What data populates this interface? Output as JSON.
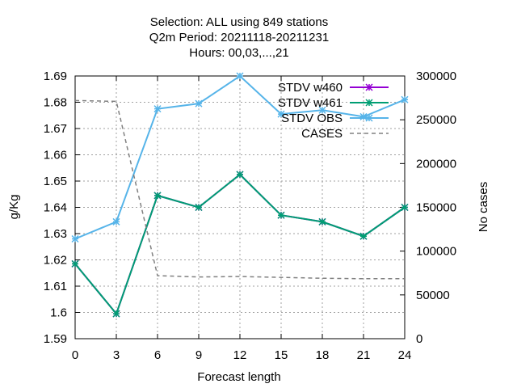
{
  "chart_data": {
    "type": "line",
    "title_lines": [
      "Selection: ALL using   849 stations",
      "Q2m   Period: 20211118-20211231",
      "Hours:  00,03,...,21"
    ],
    "xlabel": "Forecast length",
    "ylabel": "g/Kg",
    "y2label": "No cases",
    "x": [
      0,
      3,
      6,
      9,
      12,
      15,
      18,
      21,
      24
    ],
    "xlim": [
      0,
      24
    ],
    "ylim": [
      1.59,
      1.69
    ],
    "y2lim": [
      0,
      300000
    ],
    "yticks": [
      "1.59",
      "1.6",
      "1.61",
      "1.62",
      "1.63",
      "1.64",
      "1.65",
      "1.66",
      "1.67",
      "1.68",
      "1.69"
    ],
    "y2ticks": [
      "0",
      "50000",
      "100000",
      "150000",
      "200000",
      "250000",
      "300000"
    ],
    "xticks": [
      "0",
      "3",
      "6",
      "9",
      "12",
      "15",
      "18",
      "21",
      "24"
    ],
    "grid": true,
    "legend_position": "top-right",
    "series": [
      {
        "name": "STDV w460",
        "axis": "y",
        "color": "#9400d3",
        "style": "solid-markers",
        "values": [
          1.6185,
          1.5995,
          1.6445,
          1.64,
          1.6525,
          1.637,
          1.6345,
          1.629,
          1.64
        ]
      },
      {
        "name": "STDV w461",
        "axis": "y",
        "color": "#009e73",
        "style": "solid-markers",
        "values": [
          1.6185,
          1.5995,
          1.6445,
          1.64,
          1.6525,
          1.637,
          1.6345,
          1.629,
          1.64
        ]
      },
      {
        "name": "STDV OBS",
        "axis": "y",
        "color": "#56b4e9",
        "style": "solid-markers",
        "values": [
          1.628,
          1.6345,
          1.6775,
          1.6795,
          1.69,
          1.6755,
          1.677,
          1.6745,
          1.681
        ]
      },
      {
        "name": "CASES",
        "axis": "y2",
        "color": "#808080",
        "style": "dashed",
        "values": [
          272000,
          271000,
          72000,
          70500,
          71000,
          70000,
          69000,
          68500,
          68500
        ]
      }
    ]
  }
}
